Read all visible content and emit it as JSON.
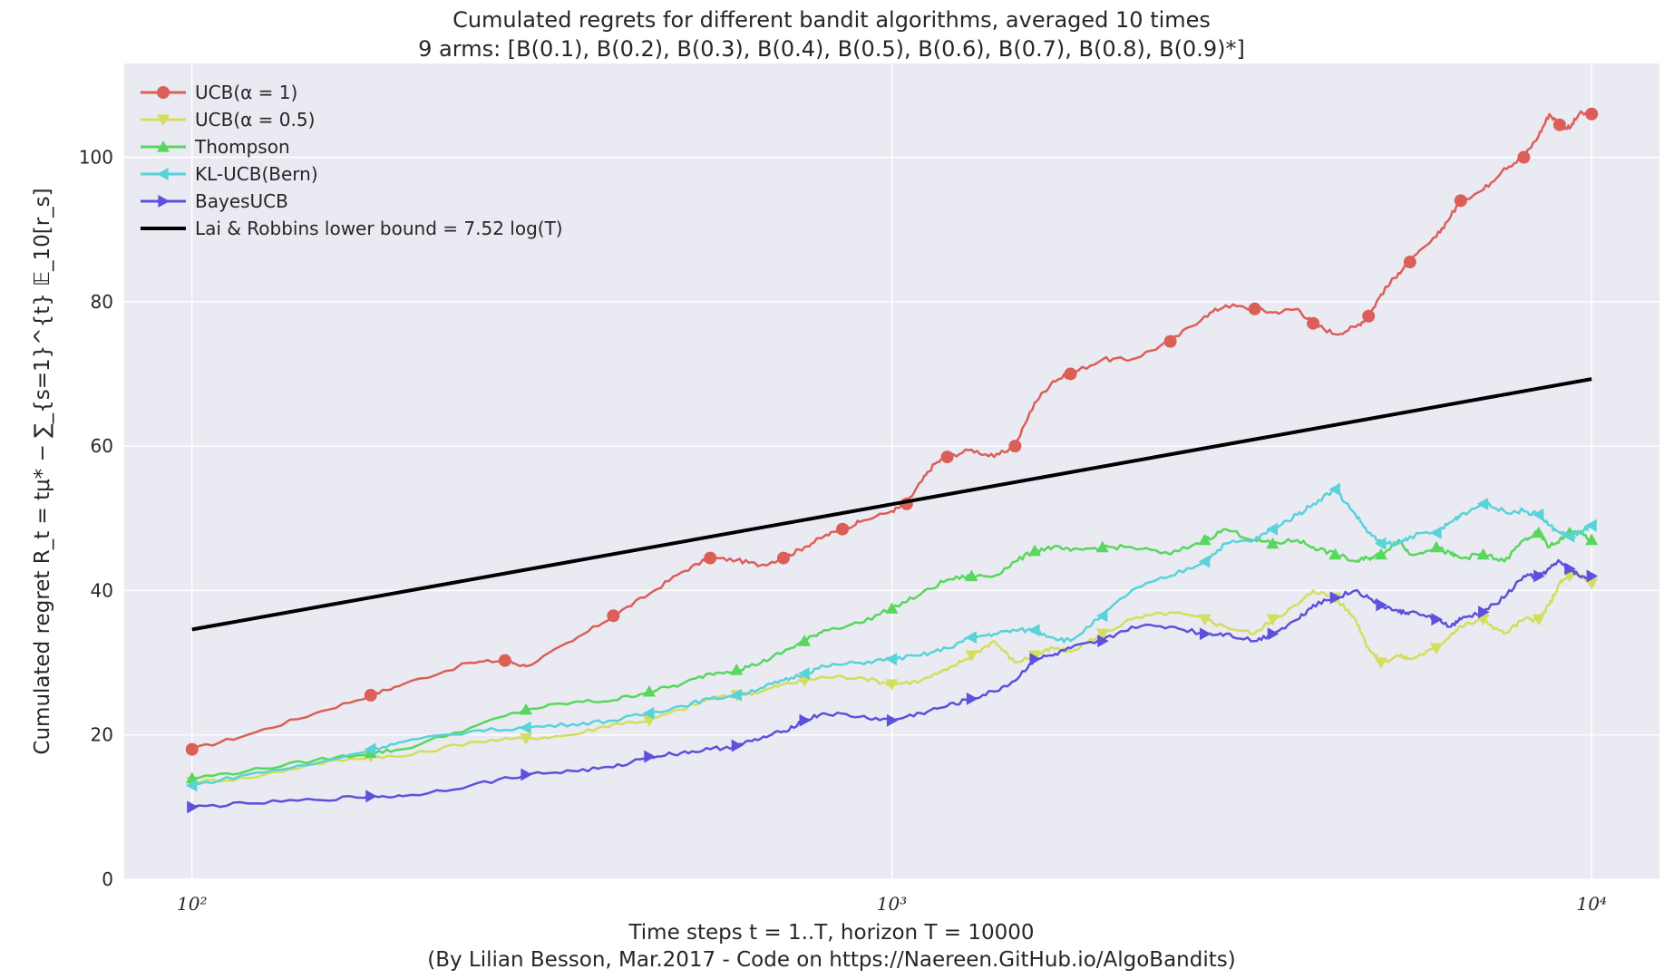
{
  "chart_data": {
    "type": "line",
    "title": "Cumulated regrets for different bandit algorithms, averaged 10 times",
    "subtitle": "9 arms: [B(0.1), B(0.2), B(0.3), B(0.4), B(0.5), B(0.6), B(0.7), B(0.8), B(0.9)*]",
    "xlabel": "Time steps t = 1..T, horizon T = 10000",
    "ylabel": "Cumulated regret R_t = tμ* − ∑_{s=1}^{t} 𝔼_10[r_s]",
    "footer": "(By Lilian Besson, Mar.2017 - Code on https://Naereen.GitHub.io/AlgoBandits)",
    "x_scale": "log",
    "xlim": [
      80,
      12500
    ],
    "ylim": [
      0,
      113
    ],
    "x_ticks": [
      {
        "value": 100,
        "label": "10²"
      },
      {
        "value": 1000,
        "label": "10³"
      },
      {
        "value": 10000,
        "label": "10⁴"
      }
    ],
    "y_ticks": [
      0,
      20,
      40,
      60,
      80,
      100
    ],
    "grid": true,
    "legend_position": "top-left",
    "background": "#eaeaf2",
    "series": [
      {
        "name": "UCB(α = 1)",
        "color": "#db5f57",
        "marker": "circle",
        "x": [
          100,
          120,
          150,
          180,
          200,
          250,
          280,
          300,
          350,
          400,
          450,
          500,
          550,
          600,
          650,
          700,
          750,
          800,
          850,
          900,
          1000,
          1050,
          1100,
          1150,
          1200,
          1300,
          1400,
          1500,
          1600,
          1700,
          1800,
          2000,
          2200,
          2500,
          2800,
          3000,
          3300,
          3500,
          3800,
          4000,
          4300,
          4600,
          4800,
          5000,
          5300,
          5500,
          6000,
          6300,
          6500,
          7000,
          7500,
          8000,
          8400,
          8700,
          9000,
          9300,
          9600,
          10000
        ],
        "y": [
          18,
          20,
          23,
          25.5,
          27,
          30,
          30.3,
          29.5,
          33,
          36.5,
          39.5,
          42.5,
          44.5,
          44.2,
          43.5,
          44.5,
          46,
          47.5,
          48.5,
          49.5,
          51,
          52,
          55,
          57.5,
          58.5,
          59.5,
          58.5,
          60,
          66,
          69,
          70,
          72,
          72,
          74.5,
          78,
          79.5,
          79,
          78.5,
          79,
          77,
          75.5,
          76.5,
          78,
          81,
          84,
          85.5,
          89,
          92,
          94,
          95.5,
          98.5,
          100,
          103,
          106,
          104.5,
          104,
          106,
          106
        ]
      },
      {
        "name": "UCB(α = 0.5)",
        "color": "#d3de5c",
        "marker": "triangle-down",
        "x": [
          100,
          120,
          150,
          180,
          200,
          250,
          300,
          350,
          400,
          450,
          500,
          550,
          600,
          650,
          700,
          750,
          800,
          900,
          1000,
          1100,
          1200,
          1300,
          1400,
          1500,
          1600,
          1700,
          1800,
          2000,
          2200,
          2500,
          2800,
          3000,
          3300,
          3500,
          3800,
          4000,
          4300,
          4600,
          4800,
          5000,
          5300,
          5500,
          6000,
          6300,
          6500,
          7000,
          7500,
          8000,
          8400,
          8700,
          9000,
          9300,
          9600,
          10000
        ],
        "y": [
          13.5,
          14,
          16,
          17,
          17,
          19,
          19.5,
          20,
          21.5,
          22,
          23.5,
          25,
          25.5,
          26,
          27,
          27.5,
          28,
          28,
          27,
          27.5,
          29,
          31,
          33,
          30,
          31,
          32,
          31.5,
          34,
          36,
          37,
          36,
          35,
          34,
          36,
          38,
          40,
          39,
          36,
          32,
          30,
          31,
          30.5,
          32,
          34,
          35,
          36,
          34,
          36,
          36,
          38,
          41,
          42,
          42,
          41
        ]
      },
      {
        "name": "Thompson",
        "color": "#57d75c",
        "marker": "triangle-up",
        "x": [
          100,
          120,
          150,
          180,
          200,
          250,
          300,
          350,
          400,
          450,
          500,
          550,
          600,
          650,
          700,
          750,
          800,
          900,
          1000,
          1100,
          1200,
          1300,
          1400,
          1500,
          1600,
          1700,
          1800,
          2000,
          2200,
          2500,
          2800,
          3000,
          3300,
          3500,
          3800,
          4000,
          4300,
          4600,
          4800,
          5000,
          5300,
          5500,
          6000,
          6300,
          6500,
          7000,
          7500,
          8000,
          8400,
          8700,
          9000,
          9300,
          9600,
          10000
        ],
        "y": [
          14,
          15,
          16.5,
          17.5,
          18,
          21,
          23.5,
          24.5,
          24.8,
          26,
          27,
          28.5,
          29,
          30,
          31.5,
          33,
          34.5,
          35.5,
          37.5,
          39.5,
          41.5,
          42,
          42,
          44,
          45.5,
          46,
          45.5,
          46,
          46,
          45,
          47,
          48.5,
          47,
          46.5,
          47,
          46,
          45,
          44,
          44.5,
          45,
          47,
          45,
          46,
          45,
          44.5,
          45,
          44,
          47,
          48,
          46,
          47,
          48,
          48,
          47
        ]
      },
      {
        "name": "KL-UCB(Bern)",
        "color": "#57d3d9",
        "marker": "triangle-left",
        "x": [
          100,
          120,
          150,
          180,
          200,
          250,
          300,
          350,
          400,
          450,
          500,
          550,
          600,
          650,
          700,
          750,
          800,
          900,
          1000,
          1100,
          1200,
          1300,
          1400,
          1500,
          1600,
          1700,
          1800,
          2000,
          2200,
          2500,
          2800,
          3000,
          3300,
          3500,
          3800,
          4000,
          4300,
          4600,
          4800,
          5000,
          5300,
          5500,
          6000,
          6300,
          6500,
          7000,
          7500,
          8000,
          8400,
          8700,
          9000,
          9300,
          9600,
          10000
        ],
        "y": [
          13,
          14.5,
          16,
          18,
          19,
          20.5,
          21,
          21.5,
          22,
          23,
          24,
          25,
          25.5,
          26.5,
          27.5,
          28.5,
          29.5,
          30,
          30.5,
          31,
          32,
          33.5,
          34,
          34.5,
          34.5,
          33.5,
          33,
          36.5,
          40,
          42,
          44,
          46.5,
          47,
          48.5,
          50.5,
          52,
          54,
          50.5,
          48,
          46.5,
          46.5,
          47.5,
          48,
          49.5,
          50.5,
          52,
          51,
          51,
          50.5,
          49,
          48,
          47.5,
          48,
          49
        ]
      },
      {
        "name": "BayesUCB",
        "color": "#5c51db",
        "marker": "triangle-right",
        "x": [
          100,
          120,
          150,
          180,
          200,
          250,
          300,
          350,
          400,
          450,
          500,
          550,
          600,
          650,
          700,
          750,
          800,
          900,
          1000,
          1100,
          1200,
          1300,
          1400,
          1500,
          1600,
          1700,
          1800,
          2000,
          2200,
          2500,
          2800,
          3000,
          3300,
          3500,
          3800,
          4000,
          4300,
          4600,
          4800,
          5000,
          5300,
          5500,
          6000,
          6300,
          6500,
          7000,
          7500,
          8000,
          8400,
          8700,
          9000,
          9300,
          9600,
          10000
        ],
        "y": [
          10,
          10.5,
          11,
          11.5,
          11.5,
          13,
          14.5,
          15,
          15.5,
          17,
          17.5,
          18,
          18.5,
          19.5,
          20.5,
          22,
          23,
          22.5,
          22,
          23,
          24,
          25,
          26,
          27.5,
          30.5,
          31,
          32,
          33,
          35,
          35,
          34,
          34,
          33,
          34,
          36,
          38,
          39,
          40,
          39,
          38,
          37,
          37,
          36,
          35,
          36,
          37,
          39,
          42,
          42,
          43,
          44,
          43,
          42,
          42
        ]
      },
      {
        "name": "Lai & Robbins lower bound = 7.52 log(T)",
        "color": "#000000",
        "marker": "none",
        "x": [
          100,
          10000
        ],
        "y": [
          34.6,
          69.3
        ]
      }
    ]
  }
}
